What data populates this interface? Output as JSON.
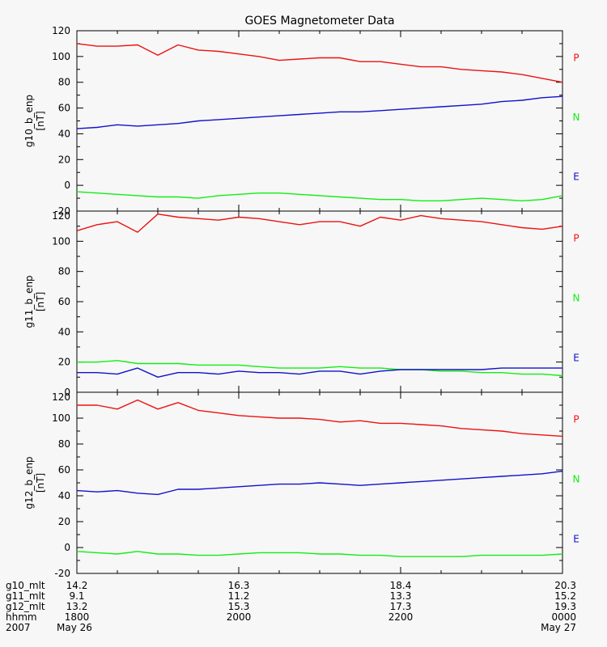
{
  "title": "GOES Magnetometer Data",
  "colors": {
    "P": "#ee1111",
    "N": "#11ee11",
    "E": "#1111cc",
    "axis": "#000000",
    "background": "#f7f7f7"
  },
  "component_labels": [
    "P",
    "N",
    "E"
  ],
  "chart_data": [
    {
      "type": "line",
      "ylabel": "g10_b_enp",
      "unit": "[nT]",
      "ylim": [
        -20,
        120
      ],
      "yticks": [
        -20,
        0,
        20,
        40,
        60,
        80,
        100,
        120
      ],
      "x": [
        0,
        0.25,
        0.5,
        0.75,
        1,
        1.25,
        1.5,
        1.75,
        2,
        2.25,
        2.5,
        2.75,
        3,
        3.25,
        3.5,
        3.75,
        4,
        4.25,
        4.5,
        4.75,
        5,
        5.25,
        5.5,
        5.75,
        6
      ],
      "series": [
        {
          "name": "P",
          "color": "#ee1111",
          "values": [
            110,
            108,
            108,
            109,
            101,
            109,
            105,
            104,
            102,
            100,
            97,
            98,
            99,
            99,
            96,
            96,
            94,
            92,
            92,
            90,
            89,
            88,
            86,
            83,
            80
          ]
        },
        {
          "name": "N",
          "color": "#11ee11",
          "values": [
            -5,
            -6,
            -7,
            -8,
            -9,
            -9,
            -10,
            -8,
            -7,
            -6,
            -6,
            -7,
            -8,
            -9,
            -10,
            -11,
            -11,
            -12,
            -12,
            -11,
            -10,
            -11,
            -12,
            -11,
            -8
          ]
        },
        {
          "name": "E",
          "color": "#1111cc",
          "values": [
            44,
            45,
            47,
            46,
            47,
            48,
            50,
            51,
            52,
            53,
            54,
            55,
            56,
            57,
            57,
            58,
            59,
            60,
            61,
            62,
            63,
            65,
            66,
            68,
            69
          ]
        }
      ]
    },
    {
      "type": "line",
      "ylabel": "g11_b_enp",
      "unit": "[nT]",
      "ylim": [
        0,
        120
      ],
      "yticks": [
        0,
        20,
        40,
        60,
        80,
        100,
        120
      ],
      "x": [
        0,
        0.25,
        0.5,
        0.75,
        1,
        1.25,
        1.5,
        1.75,
        2,
        2.25,
        2.5,
        2.75,
        3,
        3.25,
        3.5,
        3.75,
        4,
        4.25,
        4.5,
        4.75,
        5,
        5.25,
        5.5,
        5.75,
        6
      ],
      "series": [
        {
          "name": "P",
          "color": "#ee1111",
          "values": [
            107,
            111,
            113,
            106,
            118,
            116,
            115,
            114,
            116,
            115,
            113,
            111,
            113,
            113,
            110,
            116,
            114,
            117,
            115,
            114,
            113,
            111,
            109,
            108,
            110
          ]
        },
        {
          "name": "N",
          "color": "#11ee11",
          "values": [
            20,
            20,
            21,
            19,
            19,
            19,
            18,
            18,
            18,
            17,
            16,
            16,
            16,
            17,
            16,
            16,
            15,
            15,
            14,
            14,
            13,
            13,
            12,
            12,
            11
          ]
        },
        {
          "name": "E",
          "color": "#1111cc",
          "values": [
            13,
            13,
            12,
            16,
            10,
            13,
            13,
            12,
            14,
            13,
            13,
            12,
            14,
            14,
            12,
            14,
            15,
            15,
            15,
            15,
            15,
            16,
            16,
            16,
            16
          ]
        }
      ]
    },
    {
      "type": "line",
      "ylabel": "g12_b_enp",
      "unit": "[nT]",
      "ylim": [
        -20,
        120
      ],
      "yticks": [
        -20,
        0,
        20,
        40,
        60,
        80,
        100,
        120
      ],
      "x": [
        0,
        0.25,
        0.5,
        0.75,
        1,
        1.25,
        1.5,
        1.75,
        2,
        2.25,
        2.5,
        2.75,
        3,
        3.25,
        3.5,
        3.75,
        4,
        4.25,
        4.5,
        4.75,
        5,
        5.25,
        5.5,
        5.75,
        6
      ],
      "series": [
        {
          "name": "P",
          "color": "#ee1111",
          "values": [
            110,
            110,
            107,
            114,
            107,
            112,
            106,
            104,
            102,
            101,
            100,
            100,
            99,
            97,
            98,
            96,
            96,
            95,
            94,
            92,
            91,
            90,
            88,
            87,
            86
          ]
        },
        {
          "name": "N",
          "color": "#11ee11",
          "values": [
            -3,
            -4,
            -5,
            -3,
            -5,
            -5,
            -6,
            -6,
            -5,
            -4,
            -4,
            -4,
            -5,
            -5,
            -6,
            -6,
            -7,
            -7,
            -7,
            -7,
            -6,
            -6,
            -6,
            -6,
            -5
          ]
        },
        {
          "name": "E",
          "color": "#1111cc",
          "values": [
            44,
            43,
            44,
            42,
            41,
            45,
            45,
            46,
            47,
            48,
            49,
            49,
            50,
            49,
            48,
            49,
            50,
            51,
            52,
            53,
            54,
            55,
            56,
            57,
            59
          ]
        }
      ]
    }
  ],
  "x_axis": {
    "row_labels": [
      "g10_mlt",
      "g11_mlt",
      "g12_mlt",
      "hhmm",
      "2007"
    ],
    "ticks": [
      {
        "x": 0,
        "g10_mlt": "14.2",
        "g11_mlt": "9.1",
        "g12_mlt": "13.2",
        "hhmm": "1800",
        "date": "May 26"
      },
      {
        "x": 2,
        "g10_mlt": "16.3",
        "g11_mlt": "11.2",
        "g12_mlt": "15.3",
        "hhmm": "2000",
        "date": ""
      },
      {
        "x": 4,
        "g10_mlt": "18.4",
        "g11_mlt": "13.3",
        "g12_mlt": "17.3",
        "hhmm": "2200",
        "date": ""
      },
      {
        "x": 6,
        "g10_mlt": "20.3",
        "g11_mlt": "15.2",
        "g12_mlt": "19.3",
        "hhmm": "0000",
        "date": "May 27"
      }
    ],
    "minor_ticks": [
      0.5,
      1,
      1.5,
      2.5,
      3,
      3.5,
      4.5,
      5,
      5.5
    ],
    "range": [
      0,
      6
    ]
  }
}
